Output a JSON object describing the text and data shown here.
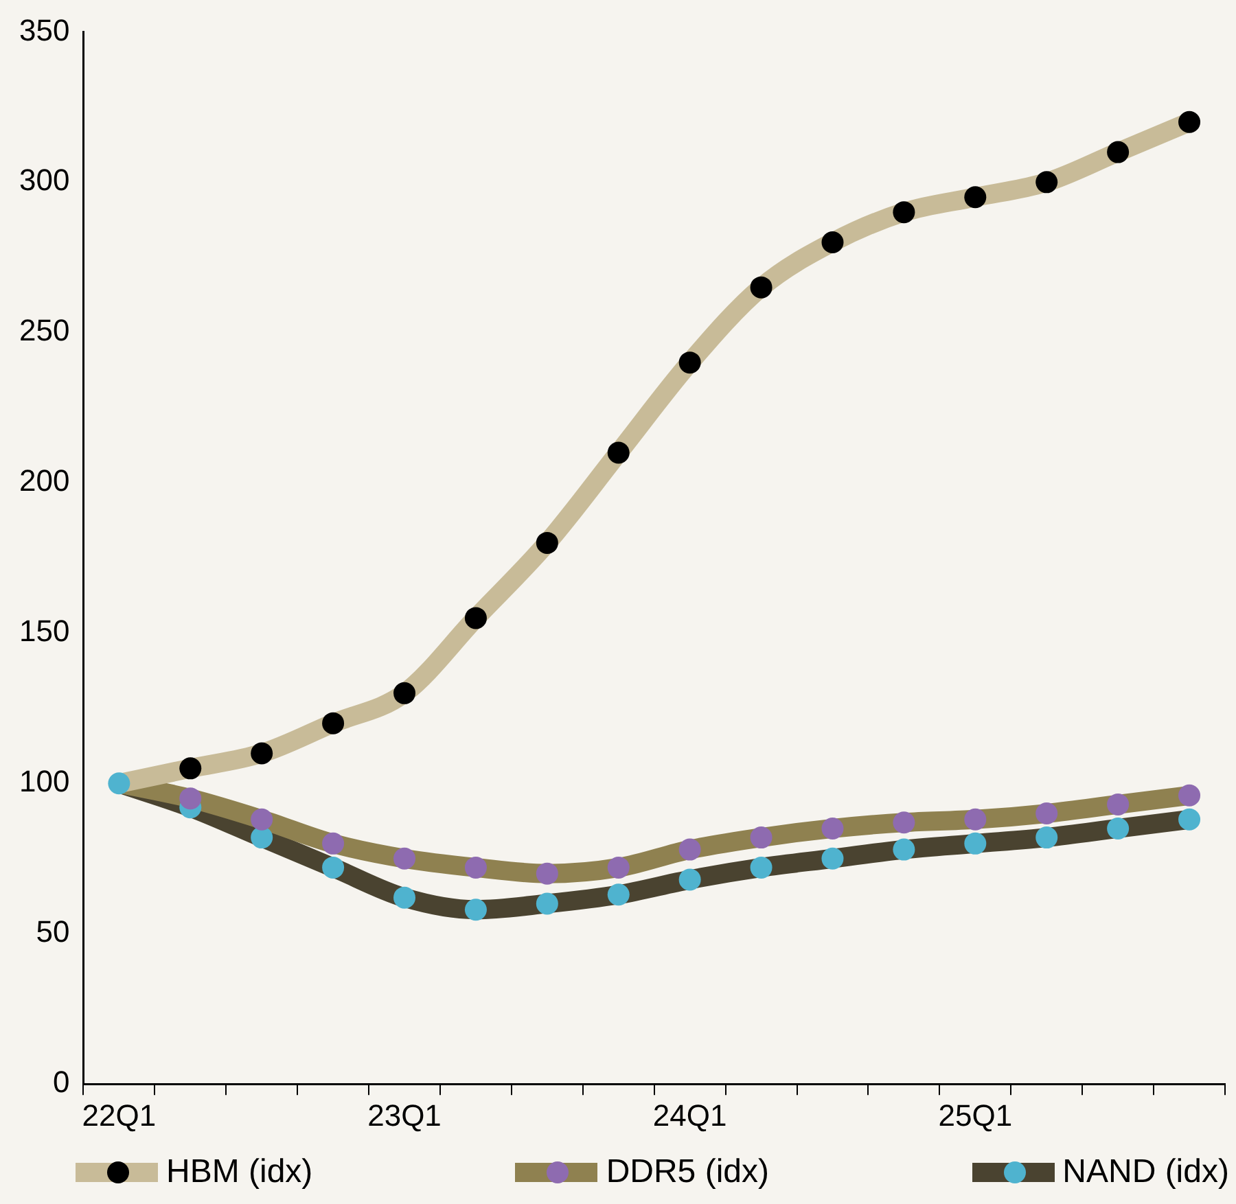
{
  "chart_data": {
    "type": "line",
    "categories": [
      "22Q1",
      null,
      null,
      null,
      "23Q1",
      null,
      null,
      null,
      "24Q1",
      null,
      null,
      null,
      "25Q1",
      null,
      null,
      null
    ],
    "ylim": [
      0,
      350
    ],
    "yticks": [
      0,
      50,
      100,
      150,
      200,
      250,
      300,
      350
    ],
    "grid": false,
    "legend": "bottom",
    "series": [
      {
        "type": "line",
        "name": "HBM (idx)",
        "color": "#c8bb98",
        "marker": "none",
        "values": [
          100,
          105,
          110,
          120,
          130,
          155,
          180,
          210,
          240,
          265,
          280,
          290,
          295,
          300,
          310,
          320
        ]
      },
      {
        "type": "scatter",
        "color": "#000000",
        "marker": "circle",
        "values": [
          null,
          105,
          110,
          120,
          130,
          155,
          180,
          210,
          240,
          265,
          280,
          290,
          295,
          300,
          310,
          320
        ]
      },
      {
        "type": "line",
        "name": "DDR5 (idx)",
        "color": "#8f8150",
        "marker": "none",
        "values": [
          100,
          95,
          88,
          80,
          75,
          72,
          70,
          72,
          78,
          82,
          85,
          87,
          88,
          90,
          93,
          96
        ]
      },
      {
        "type": "scatter",
        "color": "#8e6bb0",
        "marker": "circle",
        "values": [
          null,
          95,
          88,
          80,
          75,
          72,
          70,
          72,
          78,
          82,
          85,
          87,
          88,
          90,
          93,
          96
        ]
      },
      {
        "type": "line",
        "name": "NAND (idx)",
        "color": "#4a4330",
        "marker": "none",
        "values": [
          100,
          92,
          82,
          72,
          62,
          58,
          60,
          63,
          68,
          72,
          75,
          78,
          80,
          82,
          85,
          88
        ]
      },
      {
        "type": "scatter",
        "color": "#4fb3cf",
        "marker": "circle",
        "values": [
          100,
          92,
          82,
          72,
          62,
          58,
          60,
          63,
          68,
          72,
          75,
          78,
          80,
          82,
          85,
          88
        ]
      }
    ]
  }
}
